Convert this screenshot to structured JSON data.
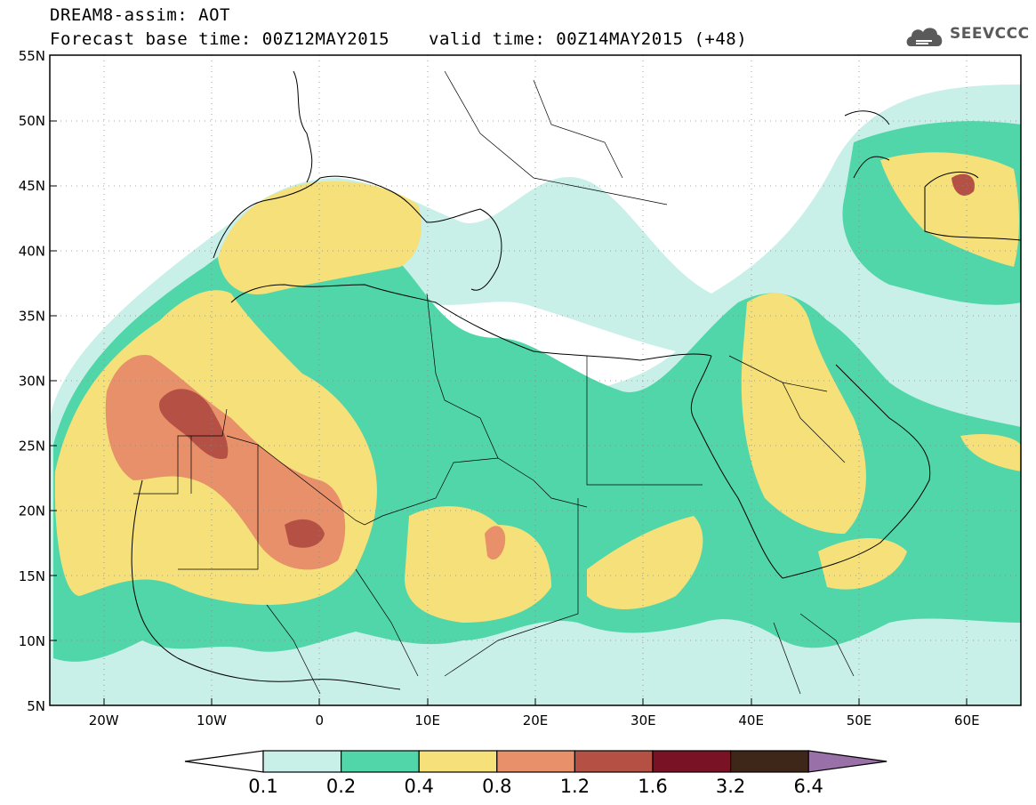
{
  "header": {
    "title_line1": "DREAM8-assim: AOT",
    "title_line2": "Forecast base time: 00Z12MAY2015",
    "valid_time": "valid time: 00Z14MAY2015 (+48)"
  },
  "logo": {
    "text": "SEEVCCC",
    "icon": "cloud-logo-icon"
  },
  "map": {
    "lon_range": [
      -25,
      65
    ],
    "lat_range": [
      5,
      55
    ],
    "lat_labels": [
      "5N",
      "10N",
      "15N",
      "20N",
      "25N",
      "30N",
      "35N",
      "40N",
      "45N",
      "50N",
      "55N"
    ],
    "lon_labels": [
      "20W",
      "10W",
      "0",
      "10E",
      "20E",
      "30E",
      "40E",
      "50E",
      "60E"
    ]
  },
  "legend": {
    "labels": [
      "0.1",
      "0.2",
      "0.4",
      "0.8",
      "1.2",
      "1.6",
      "3.2",
      "6.4"
    ],
    "colors": [
      "#c8f0e8",
      "#50d6a8",
      "#f5e07a",
      "#e8906a",
      "#b55045",
      "#7a1225",
      "#3e2618",
      "#9a70a8"
    ]
  }
}
